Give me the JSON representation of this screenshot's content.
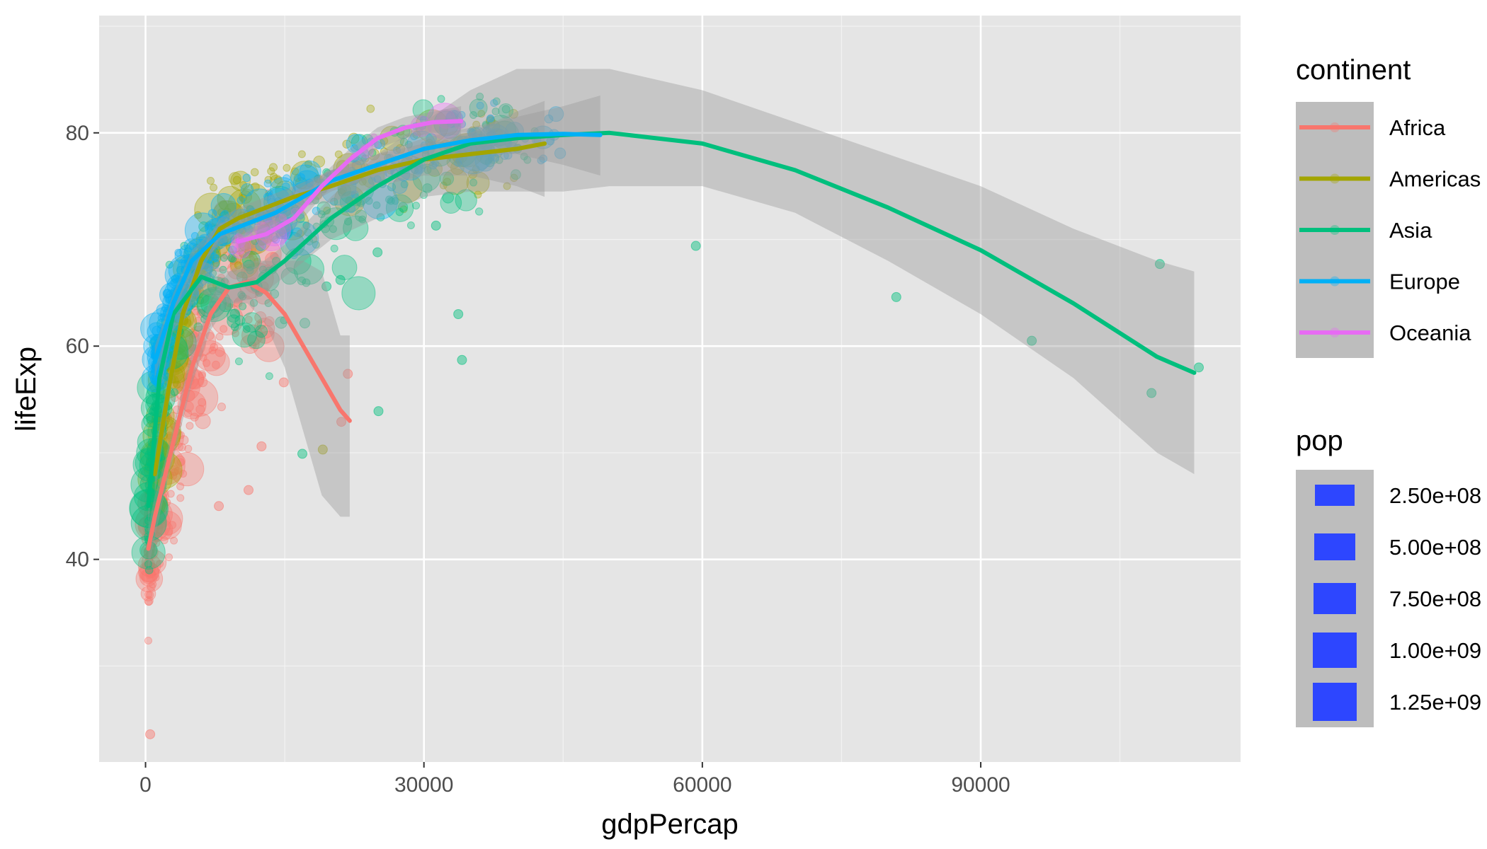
{
  "chart_data": {
    "type": "scatter",
    "xlabel": "gdpPercap",
    "ylabel": "lifeExp",
    "xlim": [
      -5000,
      118000
    ],
    "ylim": [
      21,
      91
    ],
    "x_ticks": [
      0,
      30000,
      60000,
      90000
    ],
    "x_tick_labels": [
      "0",
      "30000",
      "60000",
      "90000"
    ],
    "y_ticks": [
      40,
      60,
      80
    ],
    "y_tick_labels": [
      "40",
      "60",
      "80"
    ],
    "grid": true,
    "background": "#e5e5e5",
    "colors": {
      "Africa": "#f8766d",
      "Americas": "#a3a500",
      "Asia": "#00bf7d",
      "Europe": "#00b0f6",
      "Oceania": "#e76bf3"
    },
    "legend": {
      "continent": {
        "title": "continent",
        "entries": [
          "Africa",
          "Americas",
          "Asia",
          "Europe",
          "Oceania"
        ]
      },
      "pop": {
        "title": "pop",
        "entries": [
          "2.50e+08",
          "5.00e+08",
          "7.50e+08",
          "1.00e+09",
          "1.25e+09"
        ],
        "values": [
          250000000,
          500000000,
          750000000,
          1000000000,
          1250000000
        ]
      },
      "placement": "right"
    },
    "smooth_lines": [
      {
        "name": "Africa",
        "x": [
          300,
          1000,
          2000,
          3000,
          5000,
          7000,
          9000,
          11000,
          13000,
          15000,
          17000,
          19000,
          21000,
          22000
        ],
        "y": [
          41,
          44,
          47.5,
          51,
          58,
          63,
          65.5,
          66,
          65,
          63,
          60,
          57,
          54,
          53
        ],
        "ci_upper": [
          43,
          46,
          49,
          52.5,
          59.5,
          64.5,
          67,
          68,
          68,
          68,
          68,
          67,
          61,
          61
        ],
        "ci_lower": [
          39,
          42,
          46,
          49.5,
          56.5,
          61.5,
          64,
          64,
          62,
          58,
          52,
          46,
          44,
          44
        ]
      },
      {
        "name": "Americas",
        "x": [
          1000,
          2500,
          4000,
          6000,
          8000,
          10000,
          13000,
          16000,
          20000,
          25000,
          30000,
          35000,
          40000,
          43000
        ],
        "y": [
          48,
          56,
          63,
          68,
          71,
          72,
          73,
          74,
          75,
          76.5,
          77.5,
          78,
          78.5,
          79
        ],
        "ci_upper": [
          50,
          57.5,
          64,
          69,
          72,
          73,
          74,
          75,
          76.5,
          78,
          79,
          80,
          82,
          83
        ],
        "ci_lower": [
          46,
          54.5,
          62,
          67,
          70,
          71,
          72,
          73,
          73.5,
          75,
          76,
          76,
          75,
          74
        ]
      },
      {
        "name": "Asia",
        "x": [
          300,
          1500,
          3000,
          6000,
          9000,
          12000,
          15000,
          20000,
          25000,
          30000,
          35000,
          40000,
          45000,
          50000,
          60000,
          70000,
          80000,
          90000,
          100000,
          109000,
          113000
        ],
        "y": [
          45,
          57,
          63,
          66.5,
          65.5,
          66,
          68,
          72,
          75,
          77.5,
          79,
          79.5,
          79.8,
          80,
          79,
          76.5,
          73,
          69,
          64,
          59,
          57.5
        ],
        "ci_upper": [
          47,
          58.5,
          64.5,
          68,
          67,
          67.5,
          69.5,
          74,
          78,
          81,
          84,
          86,
          86,
          86,
          84,
          81,
          78,
          75,
          71,
          68,
          67
        ],
        "ci_lower": [
          43,
          55.5,
          61.5,
          65,
          64,
          64.5,
          66.5,
          70,
          72,
          74,
          74.5,
          74.5,
          74.5,
          75,
          75,
          72.5,
          68,
          63,
          57,
          50,
          48
        ]
      },
      {
        "name": "Europe",
        "x": [
          1000,
          3000,
          5000,
          8000,
          11000,
          14000,
          17000,
          20000,
          25000,
          30000,
          35000,
          40000,
          45000,
          49000
        ],
        "y": [
          58.5,
          64,
          68,
          70.5,
          71.5,
          72.5,
          74,
          75.5,
          77,
          78.5,
          79.3,
          79.8,
          79.9,
          79.8
        ],
        "ci_upper": [
          60,
          65,
          69,
          71.5,
          72.5,
          73.5,
          75,
          76.5,
          78,
          79.5,
          80.5,
          81.5,
          82.5,
          83.5
        ],
        "ci_lower": [
          57,
          63,
          67,
          69.5,
          70.5,
          71.5,
          73,
          74.5,
          76,
          77.5,
          78,
          78,
          77,
          76
        ]
      },
      {
        "name": "Oceania",
        "x": [
          10000,
          13000,
          16000,
          19000,
          22000,
          25000,
          28000,
          31000,
          34000
        ],
        "y": [
          69.8,
          70.5,
          72,
          75,
          77.5,
          79.5,
          80.5,
          81,
          81.1
        ],
        "ci_upper": [
          70.8,
          71.5,
          73,
          76,
          78.5,
          80.5,
          81.5,
          82,
          82.5
        ],
        "ci_lower": [
          68.8,
          69.5,
          71,
          74,
          76.5,
          78.5,
          79.5,
          80,
          79.7
        ]
      }
    ],
    "outlier_points": [
      {
        "continent": "Asia",
        "x": 59300,
        "y": 69.4
      },
      {
        "continent": "Asia",
        "x": 80900,
        "y": 64.6
      },
      {
        "continent": "Asia",
        "x": 95500,
        "y": 60.5
      },
      {
        "continent": "Asia",
        "x": 108400,
        "y": 55.6
      },
      {
        "continent": "Asia",
        "x": 109300,
        "y": 67.7
      },
      {
        "continent": "Asia",
        "x": 113500,
        "y": 58.0
      },
      {
        "continent": "Asia",
        "x": 34100,
        "y": 58.7
      },
      {
        "continent": "Asia",
        "x": 33700,
        "y": 63.0
      },
      {
        "continent": "Asia",
        "x": 31300,
        "y": 71.3
      },
      {
        "continent": "Asia",
        "x": 25000,
        "y": 68.8
      },
      {
        "continent": "Asia",
        "x": 21000,
        "y": 66.2
      },
      {
        "continent": "Asia",
        "x": 19500,
        "y": 65.6
      },
      {
        "continent": "Asia",
        "x": 25100,
        "y": 53.9
      },
      {
        "continent": "Asia",
        "x": 16900,
        "y": 49.9
      },
      {
        "continent": "Americas",
        "x": 19100,
        "y": 50.3
      },
      {
        "continent": "Africa",
        "x": 21800,
        "y": 57.4
      },
      {
        "continent": "Africa",
        "x": 21100,
        "y": 52.9
      },
      {
        "continent": "Africa",
        "x": 14900,
        "y": 56.6
      },
      {
        "continent": "Africa",
        "x": 12500,
        "y": 50.6
      },
      {
        "continent": "Africa",
        "x": 11100,
        "y": 46.5
      },
      {
        "continent": "Africa",
        "x": 7900,
        "y": 45.0
      },
      {
        "continent": "Africa",
        "x": 500,
        "y": 23.6
      }
    ]
  }
}
